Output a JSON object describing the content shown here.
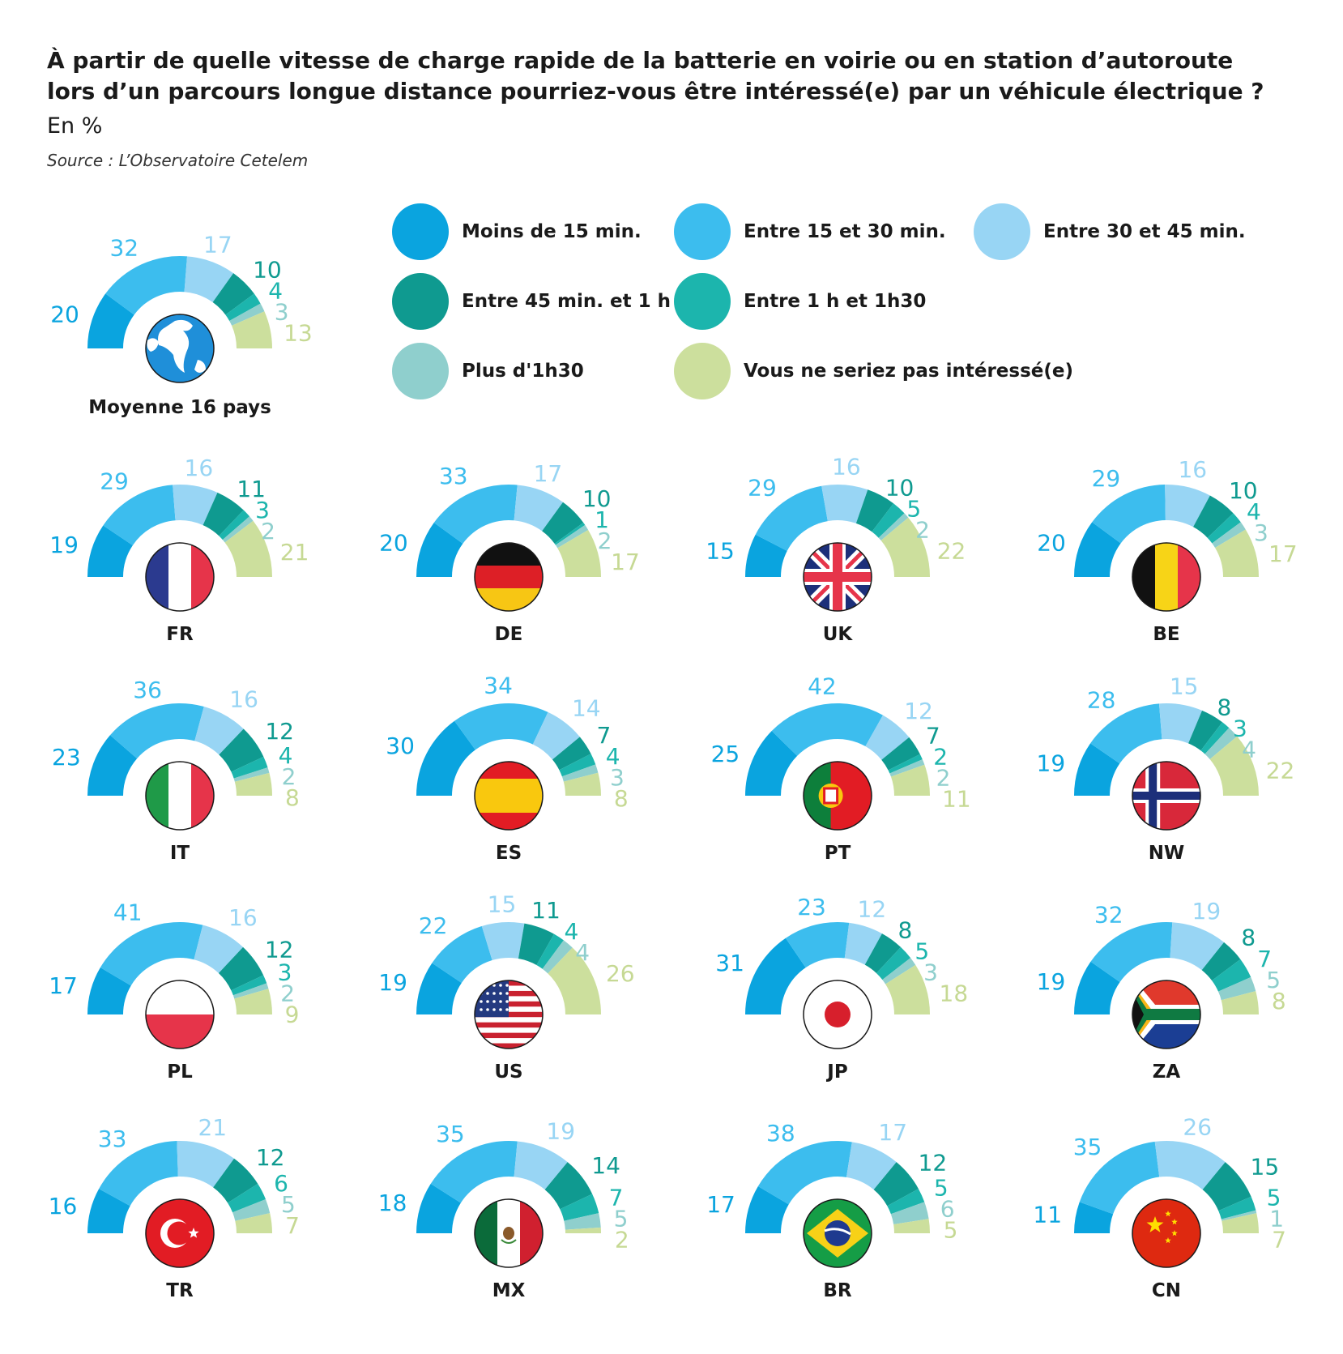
{
  "title_lines": [
    "À partir de quelle vitesse de charge rapide de la batterie en voirie ou en station d’autoroute",
    "lors d’un parcours longue distance pourriez-vous être intéressé(e) par un véhicule électrique ?"
  ],
  "subtitle": "En %",
  "source": "Source : L’Observatoire Cetelem",
  "colors": [
    "#0aa4df",
    "#3cbdee",
    "#98d5f4",
    "#0f9a90",
    "#1cb5ad",
    "#8fcfcd",
    "#ccdf9d"
  ],
  "legend": [
    {
      "label": "Moins de 15 min.",
      "color": "#0aa4df"
    },
    {
      "label": "Entre 15 et 30 min.",
      "color": "#3cbdee"
    },
    {
      "label": "Entre 30 et 45 min.",
      "color": "#98d5f4"
    },
    {
      "label": "Entre 45 min. et 1 h",
      "color": "#0f9a90"
    },
    {
      "label": "Entre 1 h et 1h30",
      "color": "#1cb5ad"
    },
    {
      "label": "Plus d'1h30",
      "color": "#8fcfcd"
    },
    {
      "label": "Vous ne seriez pas intéressé(e)",
      "color": "#ccdf9d"
    }
  ],
  "chart_data": {
    "type": "semi-donut",
    "series_names": [
      "Moins de 15 min.",
      "Entre 15 et 30 min.",
      "Entre 30 et 45 min.",
      "Entre 45 min. et 1 h",
      "Entre 1 h et 1h30",
      "Plus d'1h30",
      "Vous ne seriez pas intéressé(e)"
    ],
    "charts": [
      {
        "label": "Moyenne 16 pays",
        "flag": "globe",
        "values": [
          20,
          32,
          17,
          10,
          4,
          3,
          13
        ]
      },
      {
        "label": "FR",
        "flag": "fr",
        "values": [
          19,
          29,
          16,
          11,
          3,
          2,
          21
        ]
      },
      {
        "label": "DE",
        "flag": "de",
        "values": [
          20,
          33,
          17,
          10,
          1,
          2,
          17
        ]
      },
      {
        "label": "UK",
        "flag": "uk",
        "values": [
          15,
          29,
          16,
          10,
          5,
          2,
          22
        ]
      },
      {
        "label": "BE",
        "flag": "be",
        "values": [
          20,
          29,
          16,
          10,
          4,
          3,
          17
        ]
      },
      {
        "label": "IT",
        "flag": "it",
        "values": [
          23,
          36,
          16,
          12,
          4,
          2,
          8
        ]
      },
      {
        "label": "ES",
        "flag": "es",
        "values": [
          30,
          34,
          14,
          7,
          4,
          3,
          8
        ]
      },
      {
        "label": "PT",
        "flag": "pt",
        "values": [
          25,
          42,
          12,
          7,
          2,
          2,
          11
        ]
      },
      {
        "label": "NW",
        "flag": "nw",
        "values": [
          19,
          28,
          15,
          8,
          3,
          4,
          22
        ]
      },
      {
        "label": "PL",
        "flag": "pl",
        "values": [
          17,
          41,
          16,
          12,
          3,
          2,
          9
        ]
      },
      {
        "label": "US",
        "flag": "us",
        "values": [
          19,
          22,
          15,
          11,
          4,
          4,
          26
        ]
      },
      {
        "label": "JP",
        "flag": "jp",
        "values": [
          31,
          23,
          12,
          8,
          5,
          3,
          18
        ]
      },
      {
        "label": "ZA",
        "flag": "za",
        "values": [
          19,
          32,
          19,
          8,
          7,
          5,
          8
        ]
      },
      {
        "label": "TR",
        "flag": "tr",
        "values": [
          16,
          33,
          21,
          12,
          6,
          5,
          7
        ]
      },
      {
        "label": "MX",
        "flag": "mx",
        "values": [
          18,
          35,
          19,
          14,
          7,
          5,
          2
        ]
      },
      {
        "label": "BR",
        "flag": "br",
        "values": [
          17,
          38,
          17,
          12,
          5,
          6,
          5
        ]
      },
      {
        "label": "CN",
        "flag": "cn",
        "values": [
          11,
          35,
          26,
          15,
          5,
          1,
          7
        ]
      }
    ]
  }
}
